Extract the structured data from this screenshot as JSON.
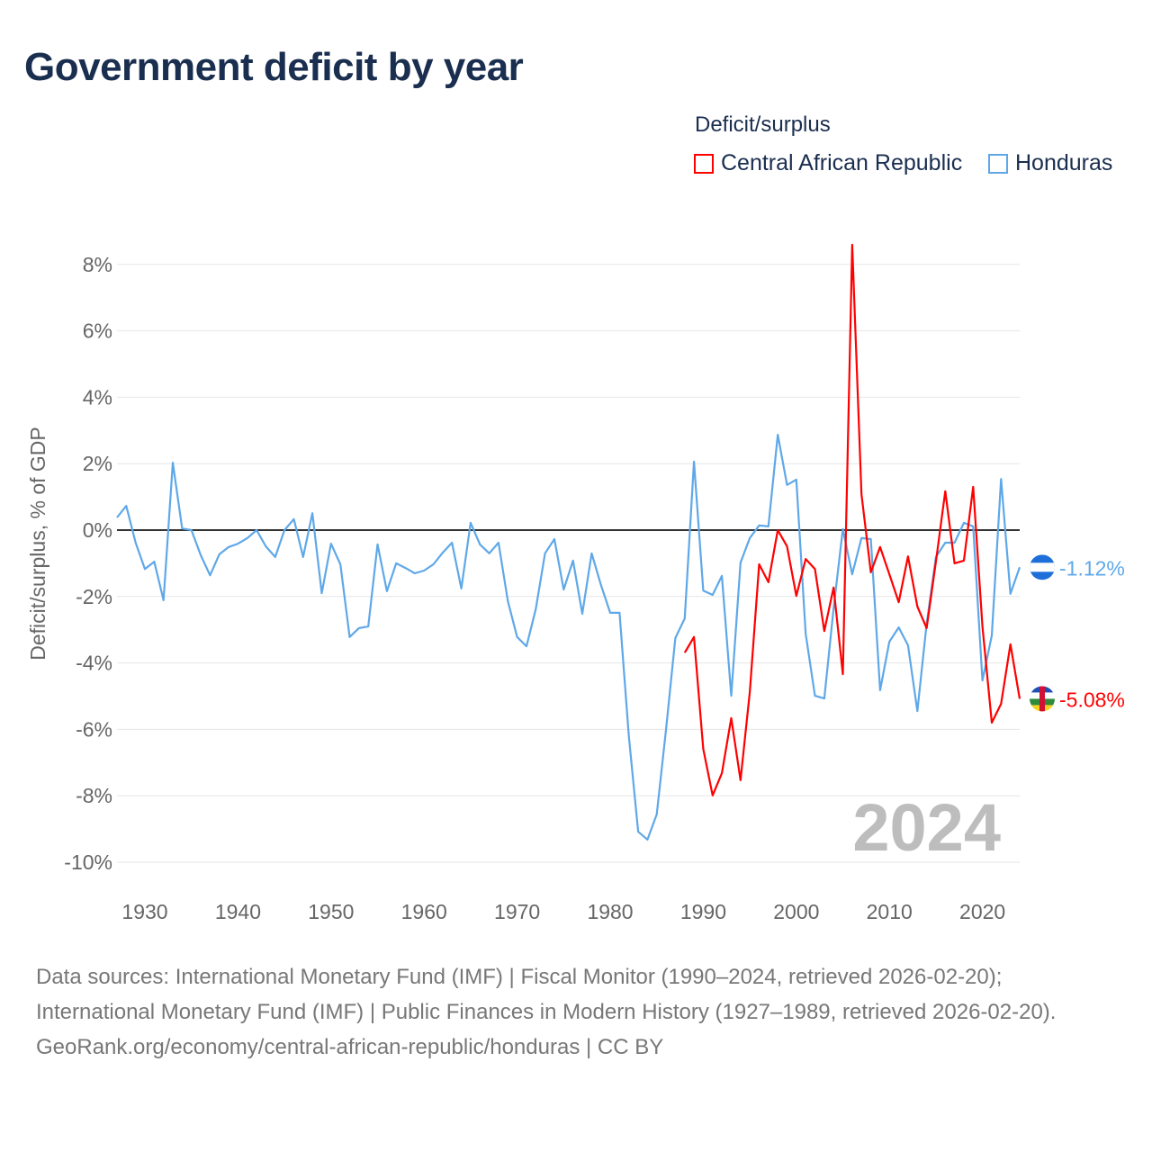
{
  "title": "Government deficit by year",
  "legend": {
    "title": "Deficit/surplus"
  },
  "year_label": "2024",
  "footer": {
    "sources": "Data sources: International Monetary Fund (IMF) | Fiscal Monitor (1990–2024, retrieved 2026-02-20); International Monetary Fund (IMF) | Public Finances in Modern History (1927–1989, retrieved 2026-02-20).",
    "credit": "GeoRank.org/economy/central-african-republic/honduras | CC BY"
  },
  "chart_data": {
    "type": "line",
    "title": "Government deficit by year",
    "xlabel": "",
    "ylabel": "Deficit/surplus, % of GDP",
    "xlim": [
      1927,
      2024
    ],
    "ylim": [
      -10,
      8
    ],
    "xticks": [
      1930,
      1940,
      1950,
      1960,
      1970,
      1980,
      1990,
      2000,
      2010,
      2020
    ],
    "yticks": [
      8,
      6,
      4,
      2,
      0,
      -2,
      -4,
      -6,
      -8,
      -10
    ],
    "ytick_labels": [
      "8%",
      "6%",
      "4%",
      "2%",
      "0%",
      "-2%",
      "-4%",
      "-6%",
      "-8%",
      "-10%"
    ],
    "legend_placement": "top-right",
    "series": [
      {
        "name": "Central African Republic",
        "color": "#ff0000",
        "end_label": "-5.08%",
        "x_start": 1988,
        "values": [
          -3.69,
          -3.22,
          -6.59,
          -7.99,
          -7.32,
          -5.66,
          -7.53,
          -4.88,
          -1.03,
          -1.57,
          0,
          -0.49,
          -1.98,
          -0.87,
          -1.17,
          -3.04,
          -1.73,
          -4.34,
          8.59,
          1.08,
          -1.27,
          -0.51,
          -1.33,
          -2.17,
          -0.79,
          -2.3,
          -2.95,
          -0.95,
          1.17,
          -1.0,
          -0.92,
          1.3,
          -2.9,
          -5.8,
          -5.23,
          -3.44,
          -5.08
        ]
      },
      {
        "name": "Honduras",
        "color": "#5fa8e8",
        "end_label": "-1.12%",
        "x_start": 1927,
        "values": [
          0.38,
          0.73,
          -0.38,
          -1.17,
          -0.95,
          -2.11,
          2.03,
          0.05,
          0,
          -0.76,
          -1.36,
          -0.73,
          -0.51,
          -0.41,
          -0.24,
          0,
          -0.49,
          -0.81,
          0,
          0.33,
          -0.81,
          0.51,
          -1.9,
          -0.41,
          -1.03,
          -3.22,
          -2.95,
          -2.9,
          -0.43,
          -1.84,
          -1.0,
          -1.14,
          -1.3,
          -1.22,
          -1.03,
          -0.68,
          -0.38,
          -1.76,
          0.22,
          -0.43,
          -0.7,
          -0.38,
          -2.14,
          -3.22,
          -3.5,
          -2.38,
          -0.7,
          -0.27,
          -1.79,
          -0.92,
          -2.52,
          -0.7,
          -1.65,
          -2.49,
          -2.49,
          -6.2,
          -9.08,
          -9.32,
          -8.56,
          -5.99,
          -3.25,
          -2.66,
          2.06,
          -1.82,
          -1.95,
          -1.38,
          -4.99,
          -0.98,
          -0.24,
          0.14,
          0.11,
          2.87,
          1.36,
          1.52,
          -3.12,
          -4.99,
          -5.07,
          -2.36,
          0.03,
          -1.33,
          -0.24,
          -0.27,
          -4.82,
          -3.36,
          -2.93,
          -3.47,
          -5.45,
          -2.82,
          -0.81,
          -0.38,
          -0.38,
          0.22,
          0.11,
          -4.53,
          -3.17,
          1.54,
          -1.92,
          -1.12
        ]
      }
    ]
  }
}
